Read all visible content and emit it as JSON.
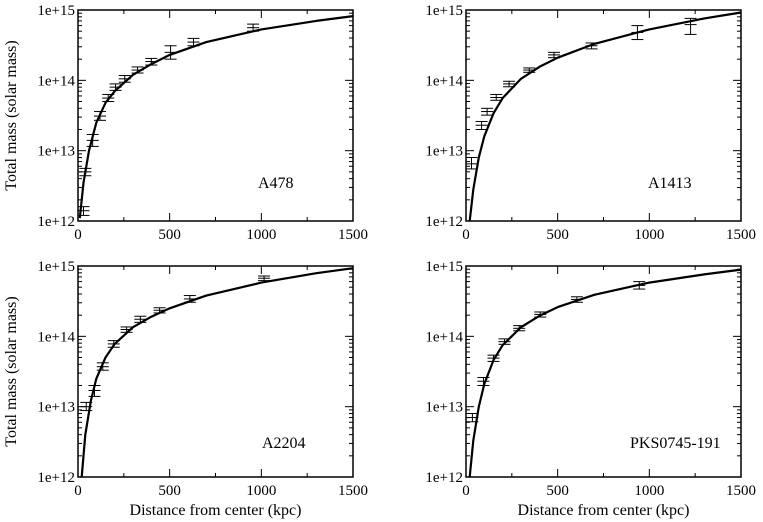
{
  "chart_data": [
    {
      "type": "scatter",
      "label": "A478",
      "xlabel": "",
      "ylabel": "Total mass (solar mass)",
      "xlim": [
        0,
        1500
      ],
      "ylim": [
        1000000000000.0,
        1000000000000000.0
      ],
      "yscale": "log",
      "xticks": [
        "0",
        "500",
        "1000",
        "1500"
      ],
      "yticks": [
        "1e+12",
        "1e+13",
        "1e+14",
        "1e+15"
      ],
      "fit_curve": {
        "x": [
          10,
          30,
          60,
          100,
          150,
          200,
          300,
          400,
          500,
          700,
          1000,
          1300,
          1500
        ],
        "y": [
          1100000000000.0,
          3500000000000.0,
          10000000000000.0,
          25000000000000.0,
          48000000000000.0,
          70000000000000.0,
          120000000000000.0,
          170000000000000.0,
          230000000000000.0,
          350000000000000.0,
          530000000000000.0,
          700000000000000.0,
          820000000000000.0
        ]
      },
      "points": [
        {
          "x": 30,
          "y": 1400000000000.0,
          "ylo": 1200000000000.0,
          "yhi": 1600000000000.0
        },
        {
          "x": 40,
          "y": 5000000000000.0,
          "ylo": 4400000000000.0,
          "yhi": 5600000000000.0
        },
        {
          "x": 80,
          "y": 14000000000000.0,
          "ylo": 11500000000000.0,
          "yhi": 17000000000000.0
        },
        {
          "x": 120,
          "y": 31000000000000.0,
          "ylo": 27000000000000.0,
          "yhi": 36000000000000.0
        },
        {
          "x": 165,
          "y": 56000000000000.0,
          "ylo": 50000000000000.0,
          "yhi": 63000000000000.0
        },
        {
          "x": 205,
          "y": 80000000000000.0,
          "ylo": 72000000000000.0,
          "yhi": 89000000000000.0
        },
        {
          "x": 255,
          "y": 105000000000000.0,
          "ylo": 94000000000000.0,
          "yhi": 117000000000000.0
        },
        {
          "x": 325,
          "y": 140000000000000.0,
          "ylo": 127000000000000.0,
          "yhi": 155000000000000.0
        },
        {
          "x": 400,
          "y": 185000000000000.0,
          "ylo": 165000000000000.0,
          "yhi": 205000000000000.0
        },
        {
          "x": 505,
          "y": 250000000000000.0,
          "ylo": 200000000000000.0,
          "yhi": 310000000000000.0
        },
        {
          "x": 630,
          "y": 350000000000000.0,
          "ylo": 310000000000000.0,
          "yhi": 395000000000000.0
        },
        {
          "x": 955,
          "y": 560000000000000.0,
          "ylo": 500000000000000.0,
          "yhi": 630000000000000.0
        }
      ]
    },
    {
      "type": "scatter",
      "label": "A1413",
      "xlabel": "",
      "ylabel": "",
      "xlim": [
        0,
        1500
      ],
      "ylim": [
        1000000000000.0,
        1000000000000000.0
      ],
      "yscale": "log",
      "xticks": [
        "0",
        "500",
        "1000",
        "1500"
      ],
      "yticks": [
        "1e+12",
        "1e+13",
        "1e+14",
        "1e+15"
      ],
      "fit_curve": {
        "x": [
          20,
          40,
          70,
          100,
          150,
          200,
          300,
          400,
          500,
          700,
          1000,
          1300,
          1500
        ],
        "y": [
          1000000000000.0,
          2800000000000.0,
          8000000000000.0,
          16000000000000.0,
          34000000000000.0,
          56000000000000.0,
          105000000000000.0,
          155000000000000.0,
          210000000000000.0,
          330000000000000.0,
          530000000000000.0,
          760000000000000.0,
          920000000000000.0
        ]
      },
      "points": [
        {
          "x": 30,
          "y": 6500000000000.0,
          "ylo": 5500000000000.0,
          "yhi": 8000000000000.0
        },
        {
          "x": 85,
          "y": 23000000000000.0,
          "ylo": 20000000000000.0,
          "yhi": 26000000000000.0
        },
        {
          "x": 115,
          "y": 36000000000000.0,
          "ylo": 32000000000000.0,
          "yhi": 40000000000000.0
        },
        {
          "x": 165,
          "y": 57000000000000.0,
          "ylo": 52000000000000.0,
          "yhi": 63000000000000.0
        },
        {
          "x": 235,
          "y": 89000000000000.0,
          "ylo": 81000000000000.0,
          "yhi": 97000000000000.0
        },
        {
          "x": 345,
          "y": 140000000000000.0,
          "ylo": 130000000000000.0,
          "yhi": 150000000000000.0
        },
        {
          "x": 480,
          "y": 230000000000000.0,
          "ylo": 210000000000000.0,
          "yhi": 250000000000000.0
        },
        {
          "x": 685,
          "y": 310000000000000.0,
          "ylo": 280000000000000.0,
          "yhi": 340000000000000.0
        },
        {
          "x": 935,
          "y": 480000000000000.0,
          "ylo": 380000000000000.0,
          "yhi": 600000000000000.0
        },
        {
          "x": 1225,
          "y": 620000000000000.0,
          "ylo": 450000000000000.0,
          "yhi": 760000000000000.0
        }
      ]
    },
    {
      "type": "scatter",
      "label": "A2204",
      "xlabel": "Distance from center (kpc)",
      "ylabel": "Total mass (solar mass)",
      "xlim": [
        0,
        1500
      ],
      "ylim": [
        1000000000000.0,
        1000000000000000.0
      ],
      "yscale": "log",
      "xticks": [
        "0",
        "500",
        "1000",
        "1500"
      ],
      "yticks": [
        "1e+12",
        "1e+13",
        "1e+14",
        "1e+15"
      ],
      "fit_curve": {
        "x": [
          20,
          40,
          70,
          100,
          150,
          200,
          300,
          400,
          500,
          700,
          1000,
          1300,
          1500
        ],
        "y": [
          1000000000000.0,
          4000000000000.0,
          12000000000000.0,
          25000000000000.0,
          50000000000000.0,
          78000000000000.0,
          135000000000000.0,
          190000000000000.0,
          250000000000000.0,
          380000000000000.0,
          580000000000000.0,
          790000000000000.0,
          930000000000000.0
        ]
      },
      "points": [
        {
          "x": 45,
          "y": 10000000000000.0,
          "ylo": 8800000000000.0,
          "yhi": 11500000000000.0
        },
        {
          "x": 90,
          "y": 17000000000000.0,
          "ylo": 14000000000000.0,
          "yhi": 20000000000000.0
        },
        {
          "x": 135,
          "y": 37000000000000.0,
          "ylo": 33000000000000.0,
          "yhi": 42000000000000.0
        },
        {
          "x": 195,
          "y": 78000000000000.0,
          "ylo": 70000000000000.0,
          "yhi": 87000000000000.0
        },
        {
          "x": 265,
          "y": 125000000000000.0,
          "ylo": 114000000000000.0,
          "yhi": 136000000000000.0
        },
        {
          "x": 340,
          "y": 175000000000000.0,
          "ylo": 158000000000000.0,
          "yhi": 193000000000000.0
        },
        {
          "x": 445,
          "y": 235000000000000.0,
          "ylo": 215000000000000.0,
          "yhi": 255000000000000.0
        },
        {
          "x": 610,
          "y": 340000000000000.0,
          "ylo": 305000000000000.0,
          "yhi": 380000000000000.0
        },
        {
          "x": 1015,
          "y": 670000000000000.0,
          "ylo": 620000000000000.0,
          "yhi": 720000000000000.0
        }
      ]
    },
    {
      "type": "scatter",
      "label": "PKS0745-191",
      "xlabel": "Distance from center (kpc)",
      "ylabel": "",
      "xlim": [
        0,
        1500
      ],
      "ylim": [
        1000000000000.0,
        1000000000000000.0
      ],
      "yscale": "log",
      "xticks": [
        "0",
        "500",
        "1000",
        "1500"
      ],
      "yticks": [
        "1e+12",
        "1e+13",
        "1e+14",
        "1e+15"
      ],
      "fit_curve": {
        "x": [
          20,
          40,
          70,
          100,
          150,
          200,
          300,
          400,
          500,
          700,
          1000,
          1300,
          1500
        ],
        "y": [
          1000000000000.0,
          3300000000000.0,
          10000000000000.0,
          21000000000000.0,
          46000000000000.0,
          75000000000000.0,
          135000000000000.0,
          195000000000000.0,
          260000000000000.0,
          390000000000000.0,
          580000000000000.0,
          760000000000000.0,
          890000000000000.0
        ]
      },
      "points": [
        {
          "x": 35,
          "y": 7000000000000.0,
          "ylo": 6100000000000.0,
          "yhi": 8000000000000.0
        },
        {
          "x": 95,
          "y": 23000000000000.0,
          "ylo": 20000000000000.0,
          "yhi": 26000000000000.0
        },
        {
          "x": 150,
          "y": 49000000000000.0,
          "ylo": 44000000000000.0,
          "yhi": 54000000000000.0
        },
        {
          "x": 210,
          "y": 84000000000000.0,
          "ylo": 77000000000000.0,
          "yhi": 92000000000000.0
        },
        {
          "x": 290,
          "y": 130000000000000.0,
          "ylo": 120000000000000.0,
          "yhi": 142000000000000.0
        },
        {
          "x": 405,
          "y": 205000000000000.0,
          "ylo": 188000000000000.0,
          "yhi": 222000000000000.0
        },
        {
          "x": 605,
          "y": 335000000000000.0,
          "ylo": 305000000000000.0,
          "yhi": 365000000000000.0
        },
        {
          "x": 945,
          "y": 530000000000000.0,
          "ylo": 470000000000000.0,
          "yhi": 600000000000000.0
        }
      ]
    }
  ]
}
